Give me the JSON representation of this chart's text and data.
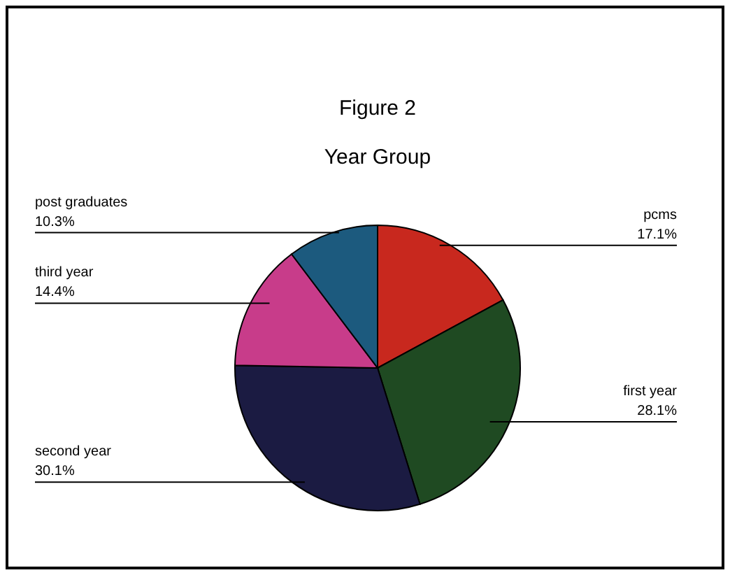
{
  "chart_data": {
    "type": "pie",
    "title": "Figure 2",
    "subtitle": "Year Group",
    "categories": [
      "pcms",
      "first year",
      "second year",
      "third year",
      "post graduates"
    ],
    "values": [
      17.1,
      28.1,
      30.1,
      14.4,
      10.3
    ],
    "colors": [
      "#c8281e",
      "#1f4a22",
      "#1b1b42",
      "#c83c8a",
      "#1c5a7e"
    ],
    "value_labels": [
      "17.1%",
      "28.1%",
      "30.1%",
      "14.4%",
      "10.3%"
    ]
  }
}
